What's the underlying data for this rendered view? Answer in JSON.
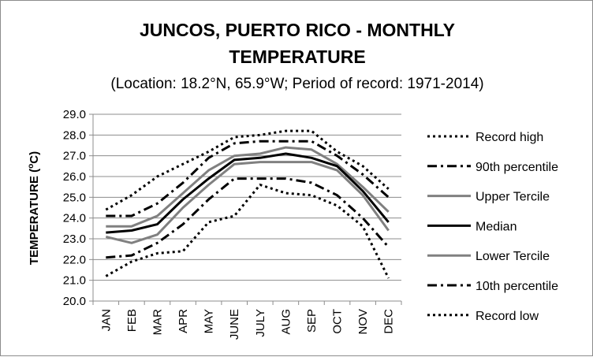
{
  "chart_data": {
    "type": "line",
    "title_line1": "JUNCOS, PUERTO RICO - MONTHLY",
    "title_line2": "TEMPERATURE",
    "subtitle": "(Location: 18.2°N, 65.9°W; Period of record: 1971-2014)",
    "ylabel_main": "TEMPERATURE (",
    "ylabel_sup": "o",
    "ylabel_end": "C)",
    "xlabel": "",
    "ylim": [
      20.0,
      29.0
    ],
    "ytick_step": 1.0,
    "yticks": [
      "20.0",
      "21.0",
      "22.0",
      "23.0",
      "24.0",
      "25.0",
      "26.0",
      "27.0",
      "28.0",
      "29.0"
    ],
    "grid": "horizontal",
    "legend_position": "right",
    "categories": [
      "JAN",
      "FEB",
      "MAR",
      "APR",
      "MAY",
      "JUNE",
      "JULY",
      "AUG",
      "SEP",
      "OCT",
      "NOV",
      "DEC"
    ],
    "series": [
      {
        "name": "Record high",
        "color": "#000000",
        "dash": "dotted",
        "width": 3,
        "values": [
          24.4,
          25.1,
          26.0,
          26.6,
          27.2,
          27.9,
          28.0,
          28.2,
          28.2,
          27.2,
          26.5,
          25.4
        ]
      },
      {
        "name": "90th percentile",
        "color": "#000000",
        "dash": "dashdot",
        "width": 3,
        "values": [
          24.1,
          24.1,
          24.7,
          25.7,
          26.9,
          27.6,
          27.7,
          27.7,
          27.7,
          27.0,
          26.1,
          25.0
        ]
      },
      {
        "name": "Upper Tercile",
        "color": "#808080",
        "dash": "solid",
        "width": 3,
        "values": [
          23.6,
          23.6,
          24.1,
          25.2,
          26.3,
          27.0,
          27.1,
          27.4,
          27.3,
          26.6,
          25.5,
          24.3
        ]
      },
      {
        "name": "Median",
        "color": "#000000",
        "dash": "solid",
        "width": 3,
        "values": [
          23.3,
          23.4,
          23.7,
          24.9,
          25.9,
          26.8,
          26.9,
          27.1,
          26.9,
          26.5,
          25.3,
          23.8
        ]
      },
      {
        "name": "Lower Tercile",
        "color": "#808080",
        "dash": "solid",
        "width": 3,
        "values": [
          23.1,
          22.8,
          23.2,
          24.5,
          25.6,
          26.6,
          26.7,
          26.7,
          26.7,
          26.3,
          25.1,
          23.4
        ]
      },
      {
        "name": "10th percentile",
        "color": "#000000",
        "dash": "dashdot",
        "width": 3,
        "values": [
          22.1,
          22.2,
          22.8,
          23.7,
          24.9,
          25.9,
          25.9,
          25.9,
          25.7,
          25.1,
          24.0,
          22.6
        ]
      },
      {
        "name": "Record low",
        "color": "#000000",
        "dash": "dotted",
        "width": 3,
        "values": [
          21.2,
          21.9,
          22.3,
          22.4,
          23.8,
          24.1,
          25.6,
          25.2,
          25.1,
          24.6,
          23.6,
          21.1
        ]
      }
    ]
  }
}
